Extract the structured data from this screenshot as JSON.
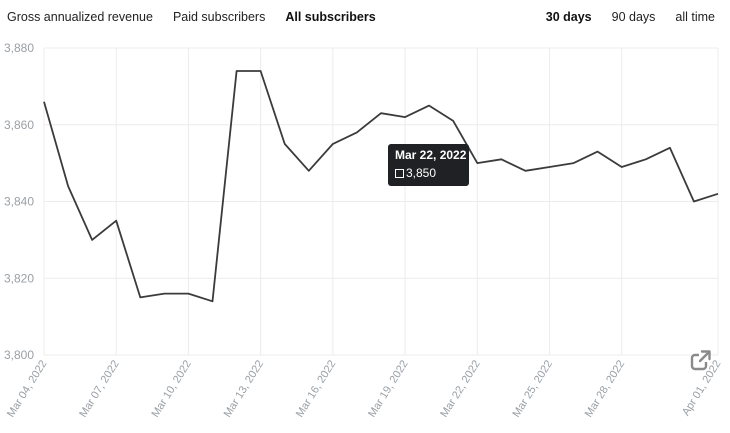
{
  "tabs": {
    "metrics": [
      {
        "label": "Gross annualized revenue",
        "active": false
      },
      {
        "label": "Paid subscribers",
        "active": false
      },
      {
        "label": "All subscribers",
        "active": true
      }
    ],
    "ranges": [
      {
        "label": "30 days",
        "active": true
      },
      {
        "label": "90 days",
        "active": false
      },
      {
        "label": "all time",
        "active": false
      }
    ]
  },
  "tooltip": {
    "date": "Mar 22, 2022",
    "value": "3,850"
  },
  "icons": {
    "open": "open-in-new-icon"
  },
  "colors": {
    "line": "#3b3b3d",
    "grid": "#ececec",
    "tick": "#9aa0a6",
    "tooltip_bg": "#1f2124"
  },
  "chart_data": {
    "type": "line",
    "title": "",
    "xlabel": "",
    "ylabel": "",
    "ylim": [
      3800,
      3880
    ],
    "yticks": [
      "3,880",
      "3,860",
      "3,840",
      "3,820",
      "3,800"
    ],
    "ytick_values": [
      3880,
      3860,
      3840,
      3820,
      3800
    ],
    "xticks": [
      "Mar 04, 2022",
      "Mar 07, 2022",
      "Mar 10, 2022",
      "Mar 13, 2022",
      "Mar 16, 2022",
      "Mar 19, 2022",
      "Mar 22, 2022",
      "Mar 25, 2022",
      "Mar 28, 2022",
      "Apr 01, 2022"
    ],
    "grid": true,
    "series": [
      {
        "name": "",
        "x": [
          "2022-03-04",
          "2022-03-05",
          "2022-03-06",
          "2022-03-07",
          "2022-03-08",
          "2022-03-09",
          "2022-03-10",
          "2022-03-11",
          "2022-03-12",
          "2022-03-13",
          "2022-03-14",
          "2022-03-15",
          "2022-03-16",
          "2022-03-17",
          "2022-03-18",
          "2022-03-19",
          "2022-03-20",
          "2022-03-21",
          "2022-03-22",
          "2022-03-23",
          "2022-03-24",
          "2022-03-25",
          "2022-03-26",
          "2022-03-27",
          "2022-03-28",
          "2022-03-29",
          "2022-03-30",
          "2022-03-31",
          "2022-04-01"
        ],
        "values": [
          3866,
          3844,
          3830,
          3835,
          3815,
          3816,
          3816,
          3814,
          3874,
          3874,
          3855,
          3848,
          3855,
          3858,
          3863,
          3862,
          3865,
          3861,
          3850,
          3851,
          3848,
          3849,
          3850,
          3853,
          3849,
          3851,
          3854,
          3840,
          3842
        ]
      }
    ]
  }
}
